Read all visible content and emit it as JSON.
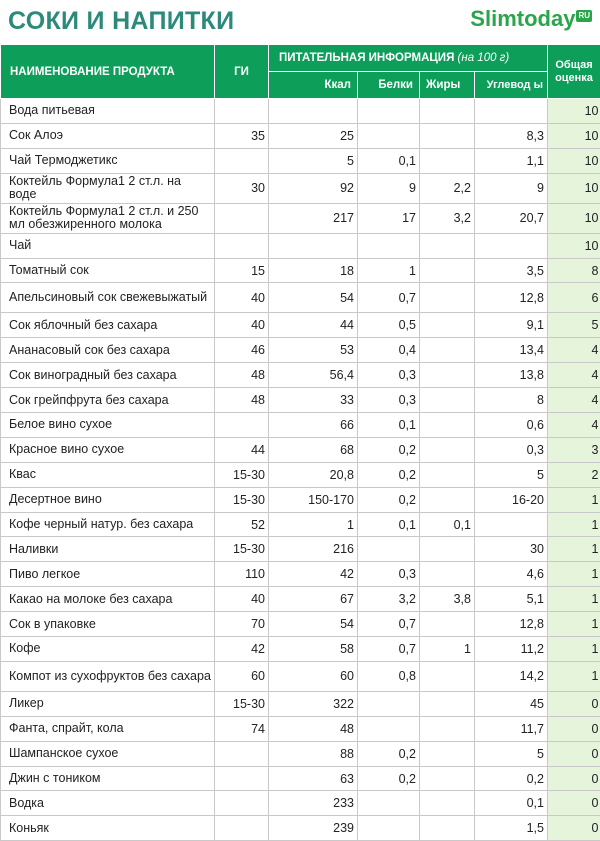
{
  "header": {
    "title": "СОКИ И НАПИТКИ",
    "logo_text": "Slimtoday",
    "logo_badge": "RU"
  },
  "table_header": {
    "name": "НАИМЕНОВАНИЕ ПРОДУКТА",
    "gi": "ГИ",
    "nutrition": "ПИТАТЕЛЬНАЯ ИНФОРМАЦИЯ",
    "nutrition_unit": "(на 100 г)",
    "kcal": "Ккал",
    "protein": "Белки",
    "fat": "Жиры",
    "carbs": "Углевод ы",
    "score": "Общая оценка"
  },
  "rows": [
    {
      "name": "Вода питьевая",
      "gi": "",
      "kcal": "",
      "protein": "",
      "fat": "",
      "carbs": "",
      "score": "10"
    },
    {
      "name": "Сок Алоэ",
      "gi": "35",
      "kcal": "25",
      "protein": "",
      "fat": "",
      "carbs": "8,3",
      "score": "10"
    },
    {
      "name": "Чай Термоджетикс",
      "gi": "",
      "kcal": "5",
      "protein": "0,1",
      "fat": "",
      "carbs": "1,1",
      "score": "10"
    },
    {
      "name": "Коктейль Формула1 2 ст.л. на воде",
      "gi": "30",
      "kcal": "92",
      "protein": "9",
      "fat": "2,2",
      "carbs": "9",
      "score": "10"
    },
    {
      "name": "Коктейль Формула1 2 ст.л. и 250 мл обезжиренного молока",
      "gi": "",
      "kcal": "217",
      "protein": "17",
      "fat": "3,2",
      "carbs": "20,7",
      "score": "10"
    },
    {
      "name": "Чай",
      "gi": "",
      "kcal": "",
      "protein": "",
      "fat": "",
      "carbs": "",
      "score": "10"
    },
    {
      "name": "Томатный сок",
      "gi": "15",
      "kcal": "18",
      "protein": "1",
      "fat": "",
      "carbs": "3,5",
      "score": "8"
    },
    {
      "name": "Апельсиновый сок свежевыжатый",
      "gi": "40",
      "kcal": "54",
      "protein": "0,7",
      "fat": "",
      "carbs": "12,8",
      "score": "6"
    },
    {
      "name": "Сок яблочный без сахара",
      "gi": "40",
      "kcal": "44",
      "protein": "0,5",
      "fat": "",
      "carbs": "9,1",
      "score": "5"
    },
    {
      "name": "Ананасовый сок без сахара",
      "gi": "46",
      "kcal": "53",
      "protein": "0,4",
      "fat": "",
      "carbs": "13,4",
      "score": "4"
    },
    {
      "name": "Сок виноградный без сахара",
      "gi": "48",
      "kcal": "56,4",
      "protein": "0,3",
      "fat": "",
      "carbs": "13,8",
      "score": "4"
    },
    {
      "name": "Сок грейпфрута без сахара",
      "gi": "48",
      "kcal": "33",
      "protein": "0,3",
      "fat": "",
      "carbs": "8",
      "score": "4"
    },
    {
      "name": "Белое вино сухое",
      "gi": "",
      "kcal": "66",
      "protein": "0,1",
      "fat": "",
      "carbs": "0,6",
      "score": "4"
    },
    {
      "name": "Красное вино сухое",
      "gi": "44",
      "kcal": "68",
      "protein": "0,2",
      "fat": "",
      "carbs": "0,3",
      "score": "3"
    },
    {
      "name": "Квас",
      "gi": "15-30",
      "kcal": "20,8",
      "protein": "0,2",
      "fat": "",
      "carbs": "5",
      "score": "2"
    },
    {
      "name": "Десертное вино",
      "gi": "15-30",
      "kcal": "150-170",
      "protein": "0,2",
      "fat": "",
      "carbs": "16-20",
      "score": "1"
    },
    {
      "name": "Кофе черный натур. без сахара",
      "gi": "52",
      "kcal": "1",
      "protein": "0,1",
      "fat": "0,1",
      "carbs": "",
      "score": "1"
    },
    {
      "name": "Наливки",
      "gi": "15-30",
      "kcal": "216",
      "protein": "",
      "fat": "",
      "carbs": "30",
      "score": "1"
    },
    {
      "name": "Пиво легкое",
      "gi": "110",
      "kcal": "42",
      "protein": "0,3",
      "fat": "",
      "carbs": "4,6",
      "score": "1"
    },
    {
      "name": "Какао на молоке без сахара",
      "gi": "40",
      "kcal": "67",
      "protein": "3,2",
      "fat": "3,8",
      "carbs": "5,1",
      "score": "1"
    },
    {
      "name": "Сок в упаковке",
      "gi": "70",
      "kcal": "54",
      "protein": "0,7",
      "fat": "",
      "carbs": "12,8",
      "score": "1"
    },
    {
      "name": "Кофе",
      "gi": "42",
      "kcal": "58",
      "protein": "0,7",
      "fat": "1",
      "carbs": "11,2",
      "score": "1"
    },
    {
      "name": "Компот из сухофруктов без сахара",
      "gi": "60",
      "kcal": "60",
      "protein": "0,8",
      "fat": "",
      "carbs": "14,2",
      "score": "1"
    },
    {
      "name": "Ликер",
      "gi": "15-30",
      "kcal": "322",
      "protein": "",
      "fat": "",
      "carbs": "45",
      "score": "0"
    },
    {
      "name": "Фанта, спрайт, кола",
      "gi": "74",
      "kcal": "48",
      "protein": "",
      "fat": "",
      "carbs": "11,7",
      "score": "0"
    },
    {
      "name": "Шампанское сухое",
      "gi": "",
      "kcal": "88",
      "protein": "0,2",
      "fat": "",
      "carbs": "5",
      "score": "0"
    },
    {
      "name": "Джин с тоником",
      "gi": "",
      "kcal": "63",
      "protein": "0,2",
      "fat": "",
      "carbs": "0,2",
      "score": "0"
    },
    {
      "name": "Водка",
      "gi": "",
      "kcal": "233",
      "protein": "",
      "fat": "",
      "carbs": "0,1",
      "score": "0"
    },
    {
      "name": "Коньяк",
      "gi": "",
      "kcal": "239",
      "protein": "",
      "fat": "",
      "carbs": "1,5",
      "score": "0"
    }
  ],
  "colors": {
    "title": "#2c8a7a",
    "header_bg": "#0d9e5a",
    "score_bg": "#e6f4dc",
    "logo": "#2aa64a"
  }
}
